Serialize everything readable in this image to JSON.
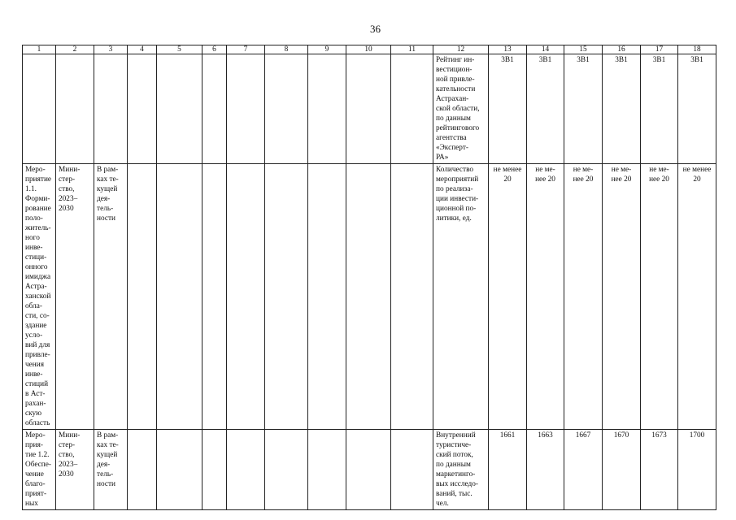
{
  "page_number": "36",
  "columns": [
    "1",
    "2",
    "3",
    "4",
    "5",
    "6",
    "7",
    "8",
    "9",
    "10",
    "11",
    "12",
    "13",
    "14",
    "15",
    "16",
    "17",
    "18"
  ],
  "rows": [
    {
      "c1": "",
      "c2": "",
      "c3": "",
      "c12": "Рейтинг ин-\nвестицион-\nной привле-\nкательности\nАстрахан-\nской области,\nпо данным\nрейтингового\nагентства\n«Эксперт-\nРА»",
      "values": [
        "3В1",
        "3В1",
        "3В1",
        "3В1",
        "3В1",
        "3В1"
      ]
    },
    {
      "c1": "Меро-\nприятие\n1.1.\nФорми-\nрование\nполо-\nжитель-\nного\nинве-\nстици-\nонного\nимиджа\nАстра-\nханской\nобла-\nсти, со-\nздание\nусло-\nвий для\nпривле-\nчения\nинве-\nстиций\nв Аст-\nрахан-\nскую\nобласть",
      "c2": "Мини-\nстер-\nство,\n2023–\n2030",
      "c3": "В рам-\nках те-\nкущей\nдея-\nтель-\nности",
      "c12": "Количество\nмероприятий\nпо реализа-\nции инвести-\nционной по-\nлитики, ед.",
      "values": [
        "не менее 20",
        "не ме-\nнее 20",
        "не ме-\nнее 20",
        "не ме-\nнее 20",
        "не ме-\nнее 20",
        "не менее\n20"
      ]
    },
    {
      "c1": "Меро-\nприя-\nтие 1.2.\nОбеспе-\nчение\nблаго-\nприят-\nных",
      "c2": "Мини-\nстер-\nство,\n2023–\n2030",
      "c3": "В рам-\nках те-\nкущей\nдея-\nтель-\nности",
      "c12": "Внутренний\nтуристиче-\nский поток,\nпо данным\nмаркетинго-\nвых исследо-\nваний, тыс.\nчел.",
      "values": [
        "1661",
        "1663",
        "1667",
        "1670",
        "1673",
        "1700"
      ]
    }
  ]
}
